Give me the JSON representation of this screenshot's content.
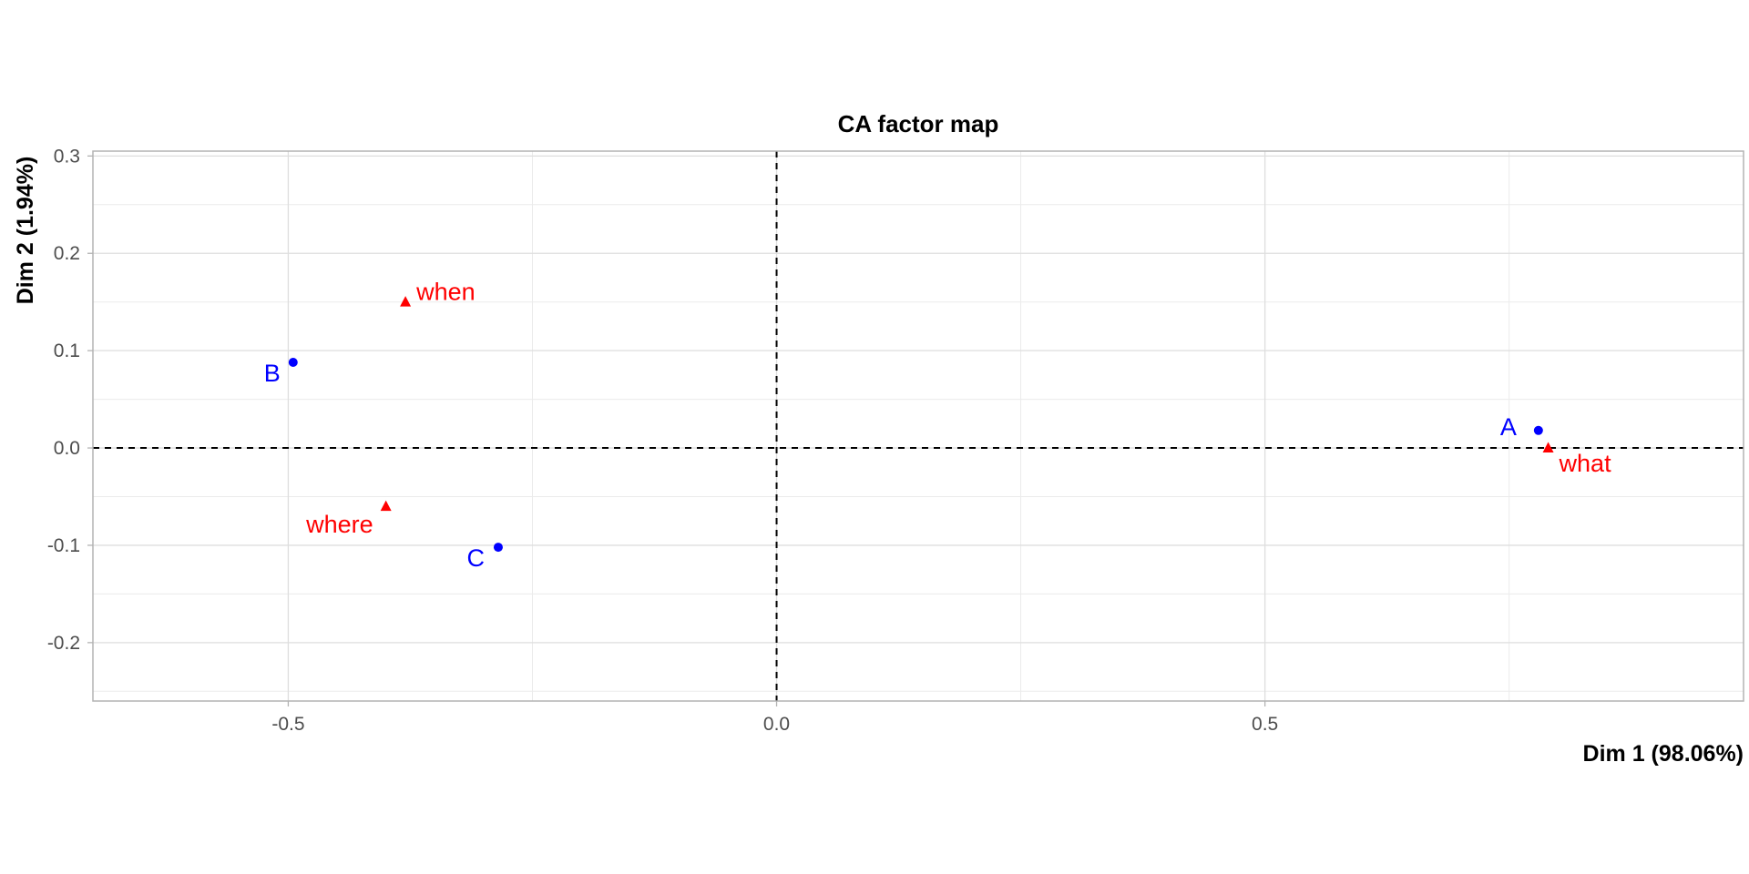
{
  "chart_data": {
    "type": "scatter",
    "title": "CA factor map",
    "xlabel": "Dim 1 (98.06%)",
    "ylabel": "Dim 2 (1.94%)",
    "xlim": [
      -0.7,
      0.99
    ],
    "ylim": [
      -0.26,
      0.305
    ],
    "x_ticks": [
      -0.5,
      0.0,
      0.5
    ],
    "x_tick_labels": [
      "-0.5",
      "0.0",
      "0.5"
    ],
    "y_ticks": [
      -0.2,
      -0.1,
      0.0,
      0.1,
      0.2,
      0.3
    ],
    "y_tick_labels": [
      "-0.2",
      "-0.1",
      "0.0",
      "0.1",
      "0.2",
      "0.3"
    ],
    "grid": true,
    "reference_lines": {
      "x": 0.0,
      "y": 0.0,
      "style": "dashed"
    },
    "series": [
      {
        "marker": "circle",
        "color": "#0000ff",
        "points": [
          {
            "label": "A",
            "x": 0.78,
            "y": 0.018
          },
          {
            "label": "B",
            "x": -0.495,
            "y": 0.088
          },
          {
            "label": "C",
            "x": -0.285,
            "y": -0.102
          }
        ]
      },
      {
        "marker": "triangle",
        "color": "#ff0000",
        "points": [
          {
            "label": "what",
            "x": 0.79,
            "y": 0.0
          },
          {
            "label": "when",
            "x": -0.38,
            "y": 0.15
          },
          {
            "label": "where",
            "x": -0.4,
            "y": -0.06
          }
        ]
      }
    ]
  }
}
